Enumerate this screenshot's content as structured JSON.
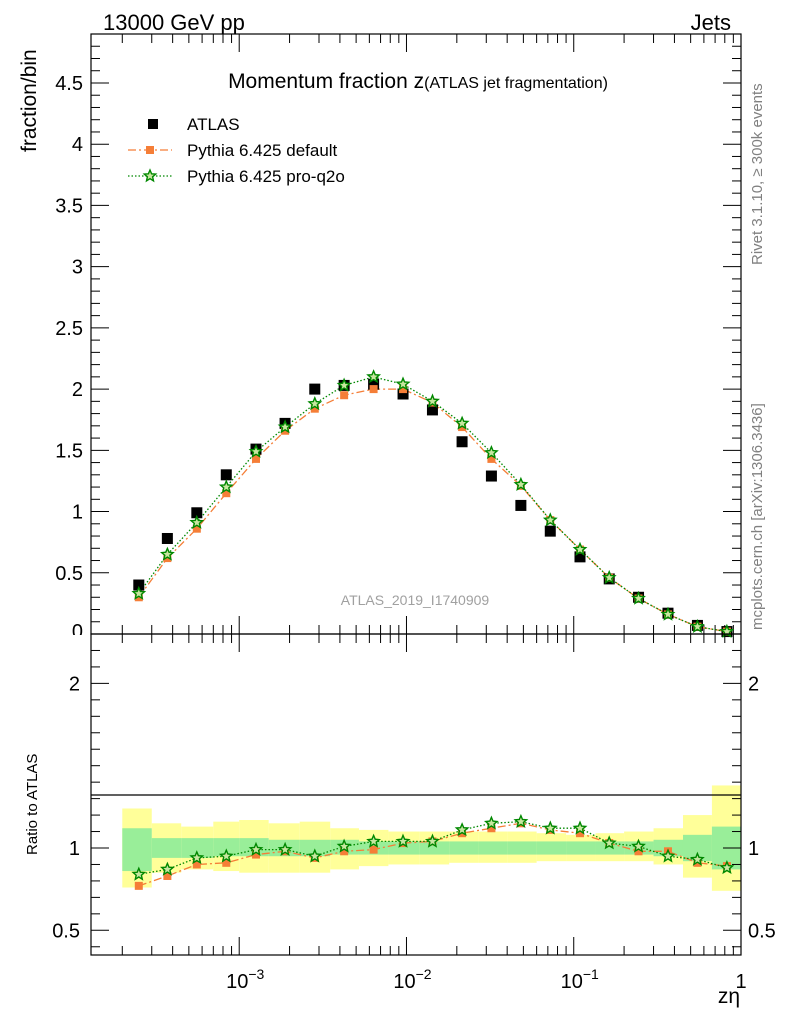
{
  "header": {
    "left": "13000 GeV pp",
    "right": "Jets"
  },
  "side": {
    "upper": "Rivet 3.1.10, ≥ 300k events",
    "lower": "mcplots.cern.ch [arXiv:1306.3436]"
  },
  "chart_data": [
    {
      "type": "scatter",
      "panel": "main",
      "title_main": "Momentum fraction z",
      "title_sub": "(ATLAS jet fragmentation)",
      "ylabel": "fraction/bin",
      "xlabel": "zη",
      "xscale": "log",
      "xlim": [
        0.00013,
        1.0
      ],
      "ylim": [
        0,
        4.9
      ],
      "yticks": [
        "0.5",
        "1",
        "1.5",
        "2",
        "2.5",
        "3",
        "3.5",
        "4",
        "4.5"
      ],
      "ytick_partial": "0",
      "annotation": "ATLAS_2019_I1740909",
      "legend_position": "top-left",
      "x": [
        0.000251,
        0.000372,
        0.000558,
        0.000837,
        0.00126,
        0.00188,
        0.00283,
        0.00424,
        0.00636,
        0.00954,
        0.0143,
        0.0215,
        0.0322,
        0.0483,
        0.0724,
        0.109,
        0.163,
        0.244,
        0.366,
        0.549,
        0.824
      ],
      "series": [
        {
          "name": "ATLAS",
          "color": "#000000",
          "marker": "square",
          "values": [
            0.4,
            0.78,
            0.99,
            1.3,
            1.51,
            1.72,
            2.0,
            2.03,
            2.04,
            1.96,
            1.83,
            1.57,
            1.29,
            1.05,
            0.84,
            0.63,
            0.45,
            0.3,
            0.17,
            0.07,
            0.02
          ]
        },
        {
          "name": "Pythia 6.425 default",
          "color": "#f57e37",
          "marker": "square-small",
          "line": "dashdot",
          "values": [
            0.3,
            0.62,
            0.86,
            1.15,
            1.43,
            1.66,
            1.84,
            1.95,
            2.0,
            2.0,
            1.89,
            1.69,
            1.43,
            1.21,
            0.93,
            0.69,
            0.46,
            0.29,
            0.16,
            0.06,
            0.02
          ]
        },
        {
          "name": "Pythia 6.425 pro-q2o",
          "color": "#008800",
          "marker": "star",
          "line": "dotted",
          "values": [
            0.33,
            0.65,
            0.91,
            1.2,
            1.49,
            1.69,
            1.88,
            2.03,
            2.1,
            2.04,
            1.9,
            1.72,
            1.48,
            1.22,
            0.93,
            0.69,
            0.46,
            0.29,
            0.16,
            0.06,
            0.02
          ]
        }
      ]
    },
    {
      "type": "scatter",
      "panel": "ratio",
      "ylabel": "Ratio to ATLAS",
      "ylim": [
        0.35,
        2.3
      ],
      "yticks": [
        "0.5",
        "1",
        "2"
      ],
      "bin_edges": [
        0.0002,
        0.0003,
        0.00045,
        0.0007,
        0.001,
        0.0015,
        0.0023,
        0.0035,
        0.0052,
        0.0078,
        0.012,
        0.018,
        0.027,
        0.04,
        0.06,
        0.09,
        0.135,
        0.2,
        0.3,
        0.45,
        0.67,
        1.0
      ],
      "band_inner": [
        [
          0.86,
          1.12
        ],
        [
          0.94,
          1.06
        ],
        [
          0.94,
          1.06
        ],
        [
          0.95,
          1.06
        ],
        [
          0.95,
          1.06
        ],
        [
          0.95,
          1.05
        ],
        [
          0.95,
          1.05
        ],
        [
          0.96,
          1.05
        ],
        [
          0.96,
          1.04
        ],
        [
          0.96,
          1.04
        ],
        [
          0.96,
          1.04
        ],
        [
          0.96,
          1.04
        ],
        [
          0.96,
          1.04
        ],
        [
          0.96,
          1.04
        ],
        [
          0.96,
          1.04
        ],
        [
          0.96,
          1.04
        ],
        [
          0.96,
          1.04
        ],
        [
          0.96,
          1.04
        ],
        [
          0.95,
          1.05
        ],
        [
          0.92,
          1.08
        ],
        [
          0.87,
          1.13
        ]
      ],
      "band_outer": [
        [
          0.76,
          1.24
        ],
        [
          0.85,
          1.15
        ],
        [
          0.87,
          1.13
        ],
        [
          0.86,
          1.16
        ],
        [
          0.85,
          1.17
        ],
        [
          0.85,
          1.15
        ],
        [
          0.85,
          1.16
        ],
        [
          0.87,
          1.12
        ],
        [
          0.89,
          1.11
        ],
        [
          0.9,
          1.1
        ],
        [
          0.9,
          1.1
        ],
        [
          0.91,
          1.1
        ],
        [
          0.91,
          1.1
        ],
        [
          0.91,
          1.1
        ],
        [
          0.92,
          1.09
        ],
        [
          0.92,
          1.08
        ],
        [
          0.92,
          1.09
        ],
        [
          0.92,
          1.1
        ],
        [
          0.9,
          1.12
        ],
        [
          0.82,
          1.2
        ],
        [
          0.74,
          1.38
        ]
      ],
      "series": [
        {
          "name": "Pythia 6.425 default",
          "color": "#f57e37",
          "values": [
            0.77,
            0.83,
            0.9,
            0.91,
            0.96,
            0.98,
            0.94,
            0.98,
            0.99,
            1.03,
            1.04,
            1.09,
            1.12,
            1.15,
            1.11,
            1.09,
            1.03,
            0.98,
            0.98,
            0.91,
            0.89
          ]
        },
        {
          "name": "Pythia 6.425 pro-q2o",
          "color": "#008800",
          "values": [
            0.84,
            0.87,
            0.94,
            0.95,
            0.99,
            0.99,
            0.95,
            1.01,
            1.04,
            1.04,
            1.04,
            1.11,
            1.15,
            1.16,
            1.12,
            1.12,
            1.03,
            1.01,
            0.95,
            0.93,
            0.88
          ]
        }
      ],
      "xticks": [
        "10",
        "10",
        "10",
        "1"
      ],
      "xtick_exponents": [
        "−3",
        "−2",
        "−1",
        ""
      ]
    }
  ]
}
